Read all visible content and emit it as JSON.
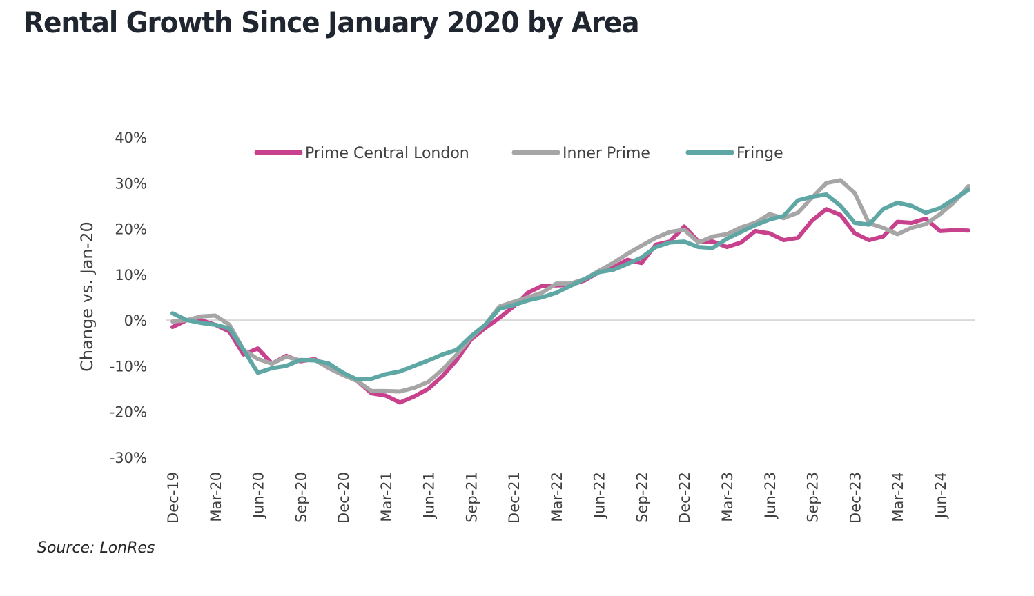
{
  "title": "Rental Growth Since January 2020 by Area",
  "source": "Source: LonRes",
  "chart_data": {
    "type": "line",
    "title": "Rental Growth Since January 2020 by Area",
    "xlabel": "",
    "ylabel": "Change vs. Jan-20",
    "ylim": [
      -30,
      40
    ],
    "yticks": [
      40,
      30,
      20,
      10,
      0,
      -10,
      -20,
      -30
    ],
    "ytick_labels": [
      "40%",
      "30%",
      "20%",
      "10%",
      "0%",
      "-10%",
      "-20%",
      "-30%"
    ],
    "grid": false,
    "zero_line": true,
    "legend_position": "top",
    "x": [
      "Dec-19",
      "Jan-20",
      "Feb-20",
      "Mar-20",
      "Apr-20",
      "May-20",
      "Jun-20",
      "Jul-20",
      "Aug-20",
      "Sep-20",
      "Oct-20",
      "Nov-20",
      "Dec-20",
      "Jan-21",
      "Feb-21",
      "Mar-21",
      "Apr-21",
      "May-21",
      "Jun-21",
      "Jul-21",
      "Aug-21",
      "Sep-21",
      "Oct-21",
      "Nov-21",
      "Dec-21",
      "Jan-22",
      "Feb-22",
      "Mar-22",
      "Apr-22",
      "May-22",
      "Jun-22",
      "Jul-22",
      "Aug-22",
      "Sep-22",
      "Oct-22",
      "Nov-22",
      "Dec-22",
      "Jan-23",
      "Feb-23",
      "Mar-23",
      "Apr-23",
      "May-23",
      "Jun-23",
      "Jul-23",
      "Aug-23",
      "Sep-23",
      "Oct-23",
      "Nov-23",
      "Dec-23",
      "Jan-24",
      "Feb-24",
      "Mar-24",
      "Apr-24",
      "May-24",
      "Jun-24",
      "Jul-24",
      "Aug-24"
    ],
    "xtick_labels": [
      "Dec-19",
      "Mar-20",
      "Jun-20",
      "Sep-20",
      "Dec-20",
      "Mar-21",
      "Jun-21",
      "Sep-21",
      "Dec-21",
      "Mar-22",
      "Jun-22",
      "Sep-22",
      "Dec-22",
      "Mar-23",
      "Jun-23",
      "Sep-23",
      "Dec-23",
      "Mar-24",
      "Jun-24"
    ],
    "series": [
      {
        "name": "Prime Central London",
        "color": "#c8418c",
        "values": [
          -1.5,
          0.0,
          0.0,
          -1.0,
          -2.5,
          -7.5,
          -6.2,
          -9.5,
          -7.8,
          -9.0,
          -8.5,
          -10.5,
          -12.0,
          -13.3,
          -16.0,
          -16.5,
          -18.0,
          -16.7,
          -15.0,
          -12.2,
          -8.7,
          -4.2,
          -1.7,
          0.5,
          3.0,
          6.0,
          7.5,
          7.6,
          7.7,
          8.7,
          10.5,
          11.5,
          13.2,
          12.5,
          16.5,
          17.2,
          20.5,
          17.2,
          17.2,
          16.0,
          17.0,
          19.5,
          19.0,
          17.5,
          18.0,
          21.8,
          24.3,
          23.0,
          19.0,
          17.5,
          18.3,
          21.5,
          21.3,
          22.2,
          19.5,
          19.7,
          19.6
        ]
      },
      {
        "name": "Inner Prime",
        "color": "#a6a6a6",
        "values": [
          -0.3,
          0.0,
          0.8,
          1.0,
          -1.0,
          -6.5,
          -8.5,
          -9.5,
          -8.0,
          -8.8,
          -8.7,
          -10.5,
          -12.0,
          -13.3,
          -15.5,
          -15.5,
          -15.6,
          -14.8,
          -13.5,
          -10.8,
          -7.5,
          -3.8,
          -1.0,
          3.0,
          4.0,
          5.0,
          6.0,
          8.0,
          8.0,
          9.0,
          10.8,
          12.5,
          14.5,
          16.3,
          18.0,
          19.3,
          19.8,
          17.0,
          18.3,
          18.8,
          20.3,
          21.3,
          23.2,
          22.3,
          23.5,
          26.8,
          30.0,
          30.6,
          27.8,
          21.2,
          20.2,
          18.8,
          20.2,
          21.0,
          23.2,
          25.8,
          29.3
        ]
      },
      {
        "name": "Fringe",
        "color": "#5fa7a5",
        "values": [
          1.5,
          0.0,
          -0.6,
          -1.0,
          -1.8,
          -6.5,
          -11.5,
          -10.5,
          -10.0,
          -8.7,
          -8.8,
          -9.5,
          -11.5,
          -13.0,
          -12.8,
          -11.8,
          -11.2,
          -10.0,
          -8.8,
          -7.5,
          -6.5,
          -3.5,
          -1.0,
          2.5,
          3.3,
          4.3,
          5.0,
          6.0,
          7.5,
          9.0,
          10.5,
          11.0,
          12.3,
          13.7,
          16.0,
          17.0,
          17.2,
          16.0,
          15.8,
          17.8,
          19.3,
          20.8,
          22.0,
          22.8,
          26.2,
          27.0,
          27.5,
          25.0,
          21.3,
          20.9,
          24.3,
          25.7,
          25.0,
          23.5,
          24.5,
          26.5,
          28.5
        ]
      }
    ]
  }
}
